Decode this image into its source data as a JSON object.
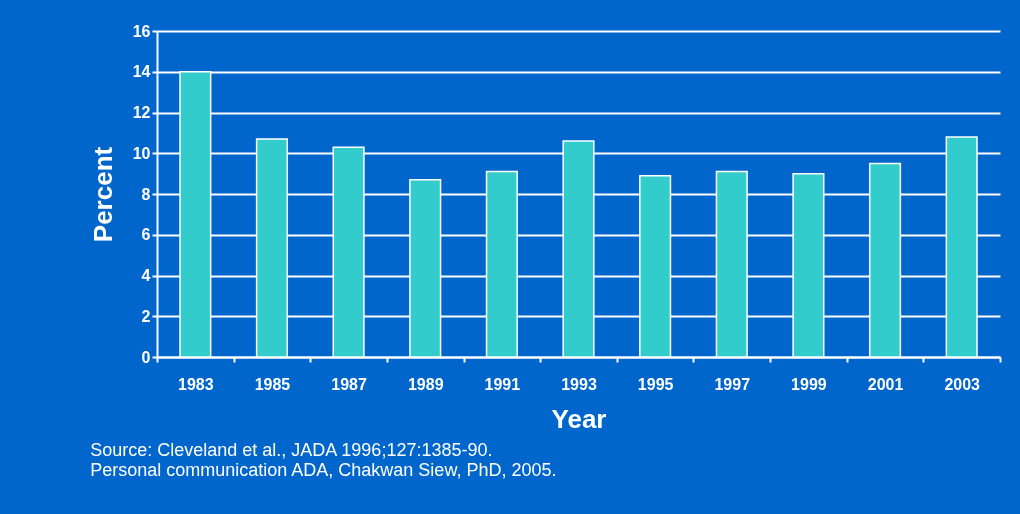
{
  "chart_data": {
    "type": "bar",
    "xlabel": "Year",
    "ylabel": "Percent",
    "categories": [
      "1983",
      "1985",
      "1987",
      "1989",
      "1991",
      "1993",
      "1995",
      "1997",
      "1999",
      "2001",
      "2003"
    ],
    "values": [
      14.0,
      10.7,
      10.3,
      8.7,
      9.1,
      10.6,
      8.9,
      9.1,
      9.0,
      9.5,
      10.8
    ],
    "color": "#33cccc",
    "ylim": [
      0,
      16
    ],
    "yticks": [
      0,
      2,
      4,
      6,
      8,
      10,
      12,
      14,
      16
    ],
    "grid": "y",
    "annotations": [
      "Source: Cleveland et al., JADA 1996;127:1385-90.",
      "Personal communication ADA, Chakwan Siew, PhD, 2005."
    ]
  }
}
